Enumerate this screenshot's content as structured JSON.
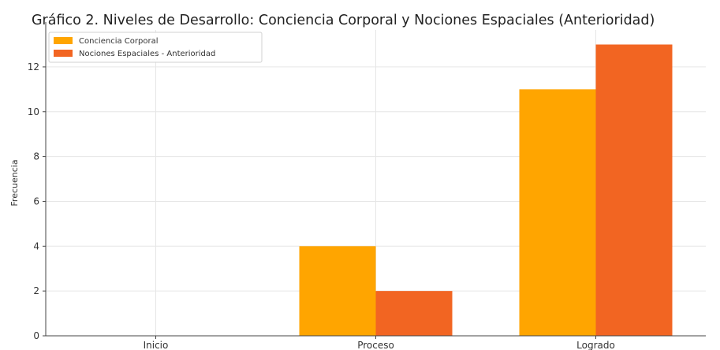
{
  "chart_data": {
    "type": "bar",
    "title": "Gráfico 2. Niveles de Desarrollo: Conciencia Corporal y Nociones Espaciales (Anterioridad)",
    "xlabel": "",
    "ylabel": "Frecuencia",
    "categories": [
      "Inicio",
      "Proceso",
      "Logrado"
    ],
    "series": [
      {
        "name": "Conciencia Corporal",
        "values": [
          0,
          4,
          11
        ],
        "color": "#FFA500"
      },
      {
        "name": "Nociones Espaciales - Anterioridad",
        "values": [
          0,
          2,
          13
        ],
        "color": "#F26522"
      }
    ],
    "ylim": [
      0,
      13.65
    ],
    "yticks": [
      0,
      2,
      4,
      6,
      8,
      10,
      12
    ],
    "grid": true,
    "legend_position": "top-left"
  }
}
